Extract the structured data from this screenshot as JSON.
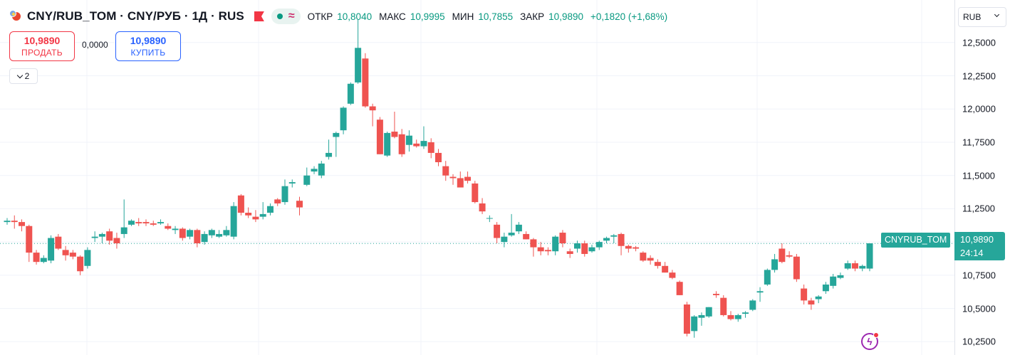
{
  "symbol": {
    "title": "CNY/RUB_TOM · CNY/РУБ · 1Д · RUS",
    "tag": "CNYRUB_TOM"
  },
  "ohlc": {
    "open_label": "ОТКР",
    "open": "10,8040",
    "high_label": "МАКС",
    "high": "10,9995",
    "low_label": "МИН",
    "low": "10,7855",
    "close_label": "ЗАКР",
    "close": "10,9890",
    "change": "+0,1820 (+1,68%)"
  },
  "trade": {
    "sell_price": "10,9890",
    "sell_label": "ПРОДАТЬ",
    "spread": "0,0000",
    "buy_price": "10,9890",
    "buy_label": "КУПИТЬ"
  },
  "indicators_toggle": {
    "count": "2"
  },
  "price_axis": {
    "currency": "RUB",
    "ticks": [
      "12,5000",
      "12,2500",
      "12,0000",
      "11,7500",
      "11,5000",
      "11,2500",
      "10,7500",
      "10,5000",
      "10,2500"
    ]
  },
  "last_price": {
    "price": "10,9890",
    "countdown": "24:14"
  },
  "colors": {
    "up": "#26a69a",
    "down": "#ef5350",
    "accent": "#2962ff",
    "grid": "#f0f3fa"
  },
  "chart_data": {
    "type": "candlestick",
    "y_range": [
      10.15,
      12.82
    ],
    "last_price": 10.989,
    "candles": [
      [
        11.15,
        11.18,
        11.13,
        11.16
      ],
      [
        11.16,
        11.2,
        11.1,
        11.15
      ],
      [
        11.15,
        11.17,
        11.08,
        11.12
      ],
      [
        11.12,
        11.13,
        10.85,
        10.92
      ],
      [
        10.92,
        10.94,
        10.83,
        10.85
      ],
      [
        10.85,
        10.9,
        10.84,
        10.88
      ],
      [
        10.86,
        11.05,
        10.84,
        11.03
      ],
      [
        11.04,
        11.06,
        10.94,
        10.95
      ],
      [
        10.94,
        10.97,
        10.86,
        10.9
      ],
      [
        10.92,
        10.94,
        10.87,
        10.89
      ],
      [
        10.89,
        10.9,
        10.75,
        10.78
      ],
      [
        10.82,
        10.96,
        10.8,
        10.94
      ],
      [
        11.03,
        11.08,
        11.0,
        11.04
      ],
      [
        11.04,
        11.07,
        10.99,
        11.06
      ],
      [
        11.08,
        11.1,
        10.98,
        11.01
      ],
      [
        11.03,
        11.07,
        10.95,
        10.99
      ],
      [
        11.06,
        11.32,
        11.03,
        11.11
      ],
      [
        11.13,
        11.17,
        11.12,
        11.16
      ],
      [
        11.15,
        11.18,
        11.12,
        11.14
      ],
      [
        11.15,
        11.17,
        11.12,
        11.14
      ],
      [
        11.14,
        11.16,
        11.12,
        11.13
      ],
      [
        11.14,
        11.17,
        11.13,
        11.15
      ],
      [
        11.12,
        11.14,
        11.09,
        11.1
      ],
      [
        11.09,
        11.12,
        11.06,
        11.1
      ],
      [
        11.1,
        11.11,
        11.01,
        11.03
      ],
      [
        11.04,
        11.1,
        11.02,
        11.09
      ],
      [
        11.09,
        11.1,
        10.96,
        10.99
      ],
      [
        11.0,
        11.08,
        10.98,
        11.06
      ],
      [
        11.05,
        11.1,
        11.03,
        11.09
      ],
      [
        11.04,
        11.09,
        11.03,
        11.06
      ],
      [
        11.05,
        11.12,
        11.04,
        11.09
      ],
      [
        11.04,
        11.3,
        11.02,
        11.27
      ],
      [
        11.35,
        11.36,
        11.2,
        11.22
      ],
      [
        11.22,
        11.26,
        11.18,
        11.2
      ],
      [
        11.19,
        11.24,
        11.15,
        11.17
      ],
      [
        11.19,
        11.3,
        11.17,
        11.21
      ],
      [
        11.22,
        11.29,
        11.2,
        11.27
      ],
      [
        11.32,
        11.33,
        11.27,
        11.29
      ],
      [
        11.3,
        11.47,
        11.28,
        11.42
      ],
      [
        11.44,
        11.47,
        11.41,
        11.45
      ],
      [
        11.31,
        11.34,
        11.2,
        11.26
      ],
      [
        11.43,
        11.56,
        11.42,
        11.5
      ],
      [
        11.53,
        11.57,
        11.51,
        11.55
      ],
      [
        11.5,
        11.61,
        11.48,
        11.59
      ],
      [
        11.64,
        11.77,
        11.62,
        11.67
      ],
      [
        11.79,
        11.83,
        11.64,
        11.82
      ],
      [
        11.84,
        12.02,
        11.81,
        12.01
      ],
      [
        12.04,
        12.2,
        12.03,
        12.19
      ],
      [
        12.2,
        12.67,
        12.19,
        12.46
      ],
      [
        12.38,
        12.42,
        12.01,
        12.02
      ],
      [
        12.02,
        12.04,
        11.87,
        11.99
      ],
      [
        11.92,
        11.94,
        11.66,
        11.66
      ],
      [
        11.65,
        11.83,
        11.64,
        11.82
      ],
      [
        11.83,
        11.98,
        11.78,
        11.79
      ],
      [
        11.81,
        11.85,
        11.64,
        11.66
      ],
      [
        11.73,
        11.84,
        11.68,
        11.8
      ],
      [
        11.74,
        11.77,
        11.71,
        11.72
      ],
      [
        11.72,
        11.87,
        11.7,
        11.76
      ],
      [
        11.75,
        11.78,
        11.63,
        11.67
      ],
      [
        11.67,
        11.7,
        11.57,
        11.6
      ],
      [
        11.57,
        11.61,
        11.46,
        11.5
      ],
      [
        11.49,
        11.51,
        11.43,
        11.48
      ],
      [
        11.48,
        11.53,
        11.41,
        11.41
      ],
      [
        11.49,
        11.53,
        11.44,
        11.46
      ],
      [
        11.44,
        11.46,
        11.29,
        11.3
      ],
      [
        11.29,
        11.33,
        11.21,
        11.23
      ],
      [
        11.18,
        11.2,
        11.15,
        11.18
      ],
      [
        11.13,
        11.15,
        10.99,
        11.03
      ],
      [
        11.0,
        11.07,
        10.96,
        11.04
      ],
      [
        11.05,
        11.21,
        11.04,
        11.07
      ],
      [
        11.08,
        11.15,
        11.06,
        11.13
      ],
      [
        11.06,
        11.08,
        11.02,
        11.02
      ],
      [
        11.02,
        11.03,
        10.89,
        10.96
      ],
      [
        10.96,
        11.0,
        10.9,
        10.93
      ],
      [
        10.94,
        10.96,
        10.9,
        10.93
      ],
      [
        10.93,
        11.05,
        10.9,
        11.04
      ],
      [
        11.07,
        11.09,
        10.96,
        10.99
      ],
      [
        10.93,
        10.95,
        10.88,
        10.91
      ],
      [
        10.95,
        11.01,
        10.92,
        10.99
      ],
      [
        10.99,
        11.01,
        10.89,
        10.91
      ],
      [
        10.93,
        10.98,
        10.92,
        10.96
      ],
      [
        10.96,
        11.01,
        10.94,
        11.0
      ],
      [
        11.01,
        11.04,
        10.99,
        11.03
      ],
      [
        11.04,
        11.06,
        10.99,
        11.05
      ],
      [
        11.06,
        11.07,
        10.9,
        10.97
      ],
      [
        10.97,
        10.98,
        10.92,
        10.95
      ],
      [
        10.96,
        10.97,
        10.93,
        10.95
      ],
      [
        10.92,
        10.93,
        10.85,
        10.86
      ],
      [
        10.88,
        10.9,
        10.83,
        10.86
      ],
      [
        10.85,
        10.87,
        10.8,
        10.82
      ],
      [
        10.82,
        10.85,
        10.77,
        10.77
      ],
      [
        10.77,
        10.79,
        10.72,
        10.73
      ],
      [
        10.7,
        10.71,
        10.6,
        10.6
      ],
      [
        10.53,
        10.55,
        10.29,
        10.31
      ],
      [
        10.33,
        10.45,
        10.28,
        10.44
      ],
      [
        10.43,
        10.47,
        10.37,
        10.45
      ],
      [
        10.44,
        10.51,
        10.43,
        10.51
      ],
      [
        10.61,
        10.63,
        10.58,
        10.6
      ],
      [
        10.58,
        10.6,
        10.44,
        10.45
      ],
      [
        10.45,
        10.48,
        10.41,
        10.42
      ],
      [
        10.42,
        10.46,
        10.4,
        10.45
      ],
      [
        10.46,
        10.48,
        10.43,
        10.47
      ],
      [
        10.49,
        10.57,
        10.48,
        10.56
      ],
      [
        10.62,
        10.66,
        10.55,
        10.63
      ],
      [
        10.68,
        10.8,
        10.67,
        10.79
      ],
      [
        10.79,
        10.91,
        10.77,
        10.87
      ],
      [
        10.95,
        10.99,
        10.84,
        10.85
      ],
      [
        10.9,
        10.93,
        10.88,
        10.89
      ],
      [
        10.89,
        10.91,
        10.7,
        10.72
      ],
      [
        10.65,
        10.68,
        10.53,
        10.56
      ],
      [
        10.56,
        10.58,
        10.49,
        10.53
      ],
      [
        10.57,
        10.6,
        10.54,
        10.59
      ],
      [
        10.63,
        10.7,
        10.61,
        10.68
      ],
      [
        10.67,
        10.76,
        10.65,
        10.74
      ],
      [
        10.73,
        10.77,
        10.72,
        10.75
      ],
      [
        10.8,
        10.86,
        10.79,
        10.84
      ],
      [
        10.84,
        10.86,
        10.78,
        10.8
      ],
      [
        10.8,
        10.83,
        10.78,
        10.82
      ],
      [
        10.8,
        10.99,
        10.78,
        10.99
      ]
    ]
  }
}
